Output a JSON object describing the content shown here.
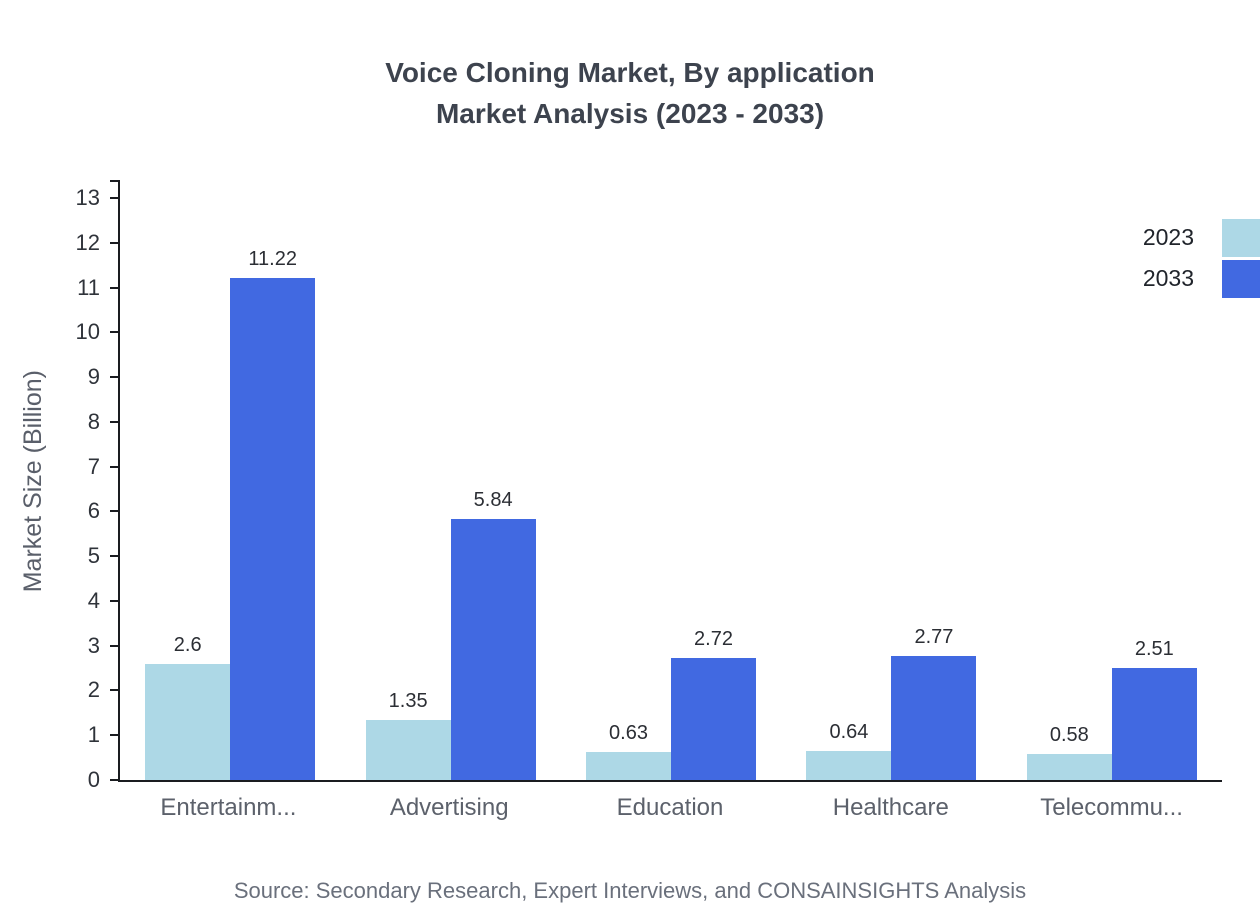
{
  "title": {
    "line1": "Voice Cloning Market, By application",
    "line2": "Market Analysis (2023 - 2033)"
  },
  "footer": {
    "source": "Source: Secondary Research, Expert Interviews, and CONSAINSIGHTS Analysis"
  },
  "chart_data": {
    "type": "bar",
    "title": "Voice Cloning Market, By application Market Analysis (2023 - 2033)",
    "categories": [
      "Entertainm...",
      "Advertising",
      "Education",
      "Healthcare",
      "Telecommu..."
    ],
    "series": [
      {
        "name": "2023",
        "color": "#add8e6",
        "values": [
          2.6,
          1.35,
          0.63,
          0.64,
          0.58
        ]
      },
      {
        "name": "2033",
        "color": "#4169e1",
        "values": [
          11.22,
          5.84,
          2.72,
          2.77,
          2.51
        ]
      }
    ],
    "xlabel": "",
    "ylabel": "Market Size (Billion)",
    "ylim": [
      0,
      13
    ],
    "yticks": [
      0,
      1,
      2,
      3,
      4,
      5,
      6,
      7,
      8,
      9,
      10,
      11,
      12,
      13
    ],
    "grid": false,
    "legend_position": "top-right"
  }
}
